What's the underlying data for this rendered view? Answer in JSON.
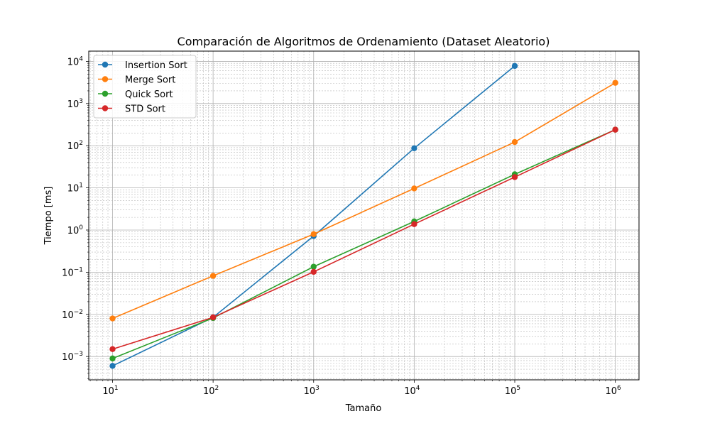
{
  "chart_data": {
    "type": "line",
    "title": "Comparación de Algoritmos de Ordenamiento (Dataset Aleatorio)",
    "xlabel": "Tamaño",
    "ylabel": "Tiempo [ms]",
    "xscale": "log",
    "yscale": "log",
    "xlim": [
      5.8,
      1720000.0
    ],
    "ylim": [
      0.00028,
      17500
    ],
    "x_ticks": [
      10,
      100,
      1000,
      10000,
      100000,
      1000000
    ],
    "x_tick_labels": [
      [
        "10",
        "1"
      ],
      [
        "10",
        "2"
      ],
      [
        "10",
        "3"
      ],
      [
        "10",
        "4"
      ],
      [
        "10",
        "5"
      ],
      [
        "10",
        "6"
      ]
    ],
    "y_ticks": [
      0.001,
      0.01,
      0.1,
      1,
      10,
      100,
      1000,
      10000
    ],
    "y_tick_labels": [
      [
        "10",
        "−3"
      ],
      [
        "10",
        "−2"
      ],
      [
        "10",
        "−1"
      ],
      [
        "10",
        "0"
      ],
      [
        "10",
        "1"
      ],
      [
        "10",
        "2"
      ],
      [
        "10",
        "3"
      ],
      [
        "10",
        "4"
      ]
    ],
    "grid": "major-and-minor",
    "legend_position": "top-left",
    "series": [
      {
        "name": "Insertion Sort",
        "color": "#1f77b4",
        "x": [
          10,
          100,
          1000,
          10000,
          100000
        ],
        "y": [
          0.0006,
          0.0085,
          0.72,
          87,
          7800
        ]
      },
      {
        "name": "Merge Sort",
        "color": "#ff7f0e",
        "x": [
          10,
          100,
          1000,
          10000,
          100000,
          1000000
        ],
        "y": [
          0.008,
          0.082,
          0.8,
          9.7,
          122,
          3100
        ]
      },
      {
        "name": "Quick Sort",
        "color": "#2ca02c",
        "x": [
          10,
          100,
          1000,
          10000,
          100000,
          1000000
        ],
        "y": [
          0.0009,
          0.0082,
          0.135,
          1.6,
          21,
          240
        ]
      },
      {
        "name": "STD Sort",
        "color": "#d62728",
        "x": [
          10,
          100,
          1000,
          10000,
          100000,
          1000000
        ],
        "y": [
          0.0015,
          0.0085,
          0.102,
          1.38,
          18,
          240
        ]
      }
    ]
  }
}
